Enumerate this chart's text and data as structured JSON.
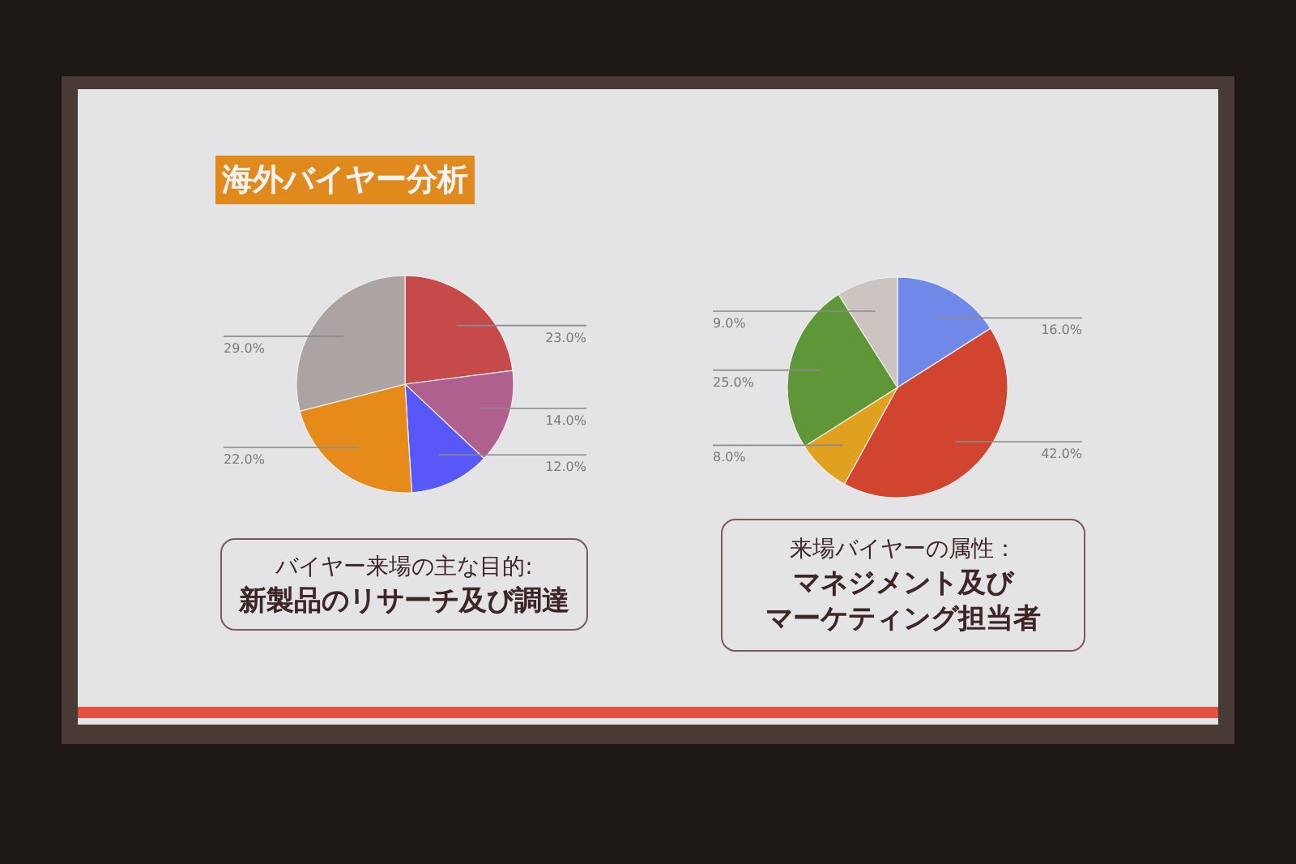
{
  "chart_data": [
    {
      "type": "pie",
      "title": "海外バイヤー分析",
      "categories": [
        null,
        null,
        null,
        null,
        null
      ],
      "values": [
        23,
        14,
        12,
        22,
        29
      ],
      "colors": [
        "#c64a4a",
        "#b0608e",
        "#5858f8",
        "#e68a1a",
        "#aca3a3"
      ],
      "value_labels": [
        "23.0%",
        "14.0%",
        "12.0%",
        "22.0%",
        "29.0%"
      ],
      "annotations": [
        "バイヤー来場の主な目的:",
        "新製品のリサーチ及び調達"
      ]
    },
    {
      "type": "pie",
      "categories": [
        null,
        null,
        null,
        null,
        null
      ],
      "values": [
        16,
        42,
        8,
        25,
        9
      ],
      "colors": [
        "#7088e8",
        "#d04430",
        "#e0a21e",
        "#5f9638",
        "#cbc4c0"
      ],
      "value_labels": [
        "16.0%",
        "42.0%",
        "8.0%",
        "25.0%",
        "9.0%"
      ],
      "annotations": [
        "来場バイヤーの属性：",
        "マネジメント及び",
        "マーケティング担当者"
      ]
    }
  ]
}
